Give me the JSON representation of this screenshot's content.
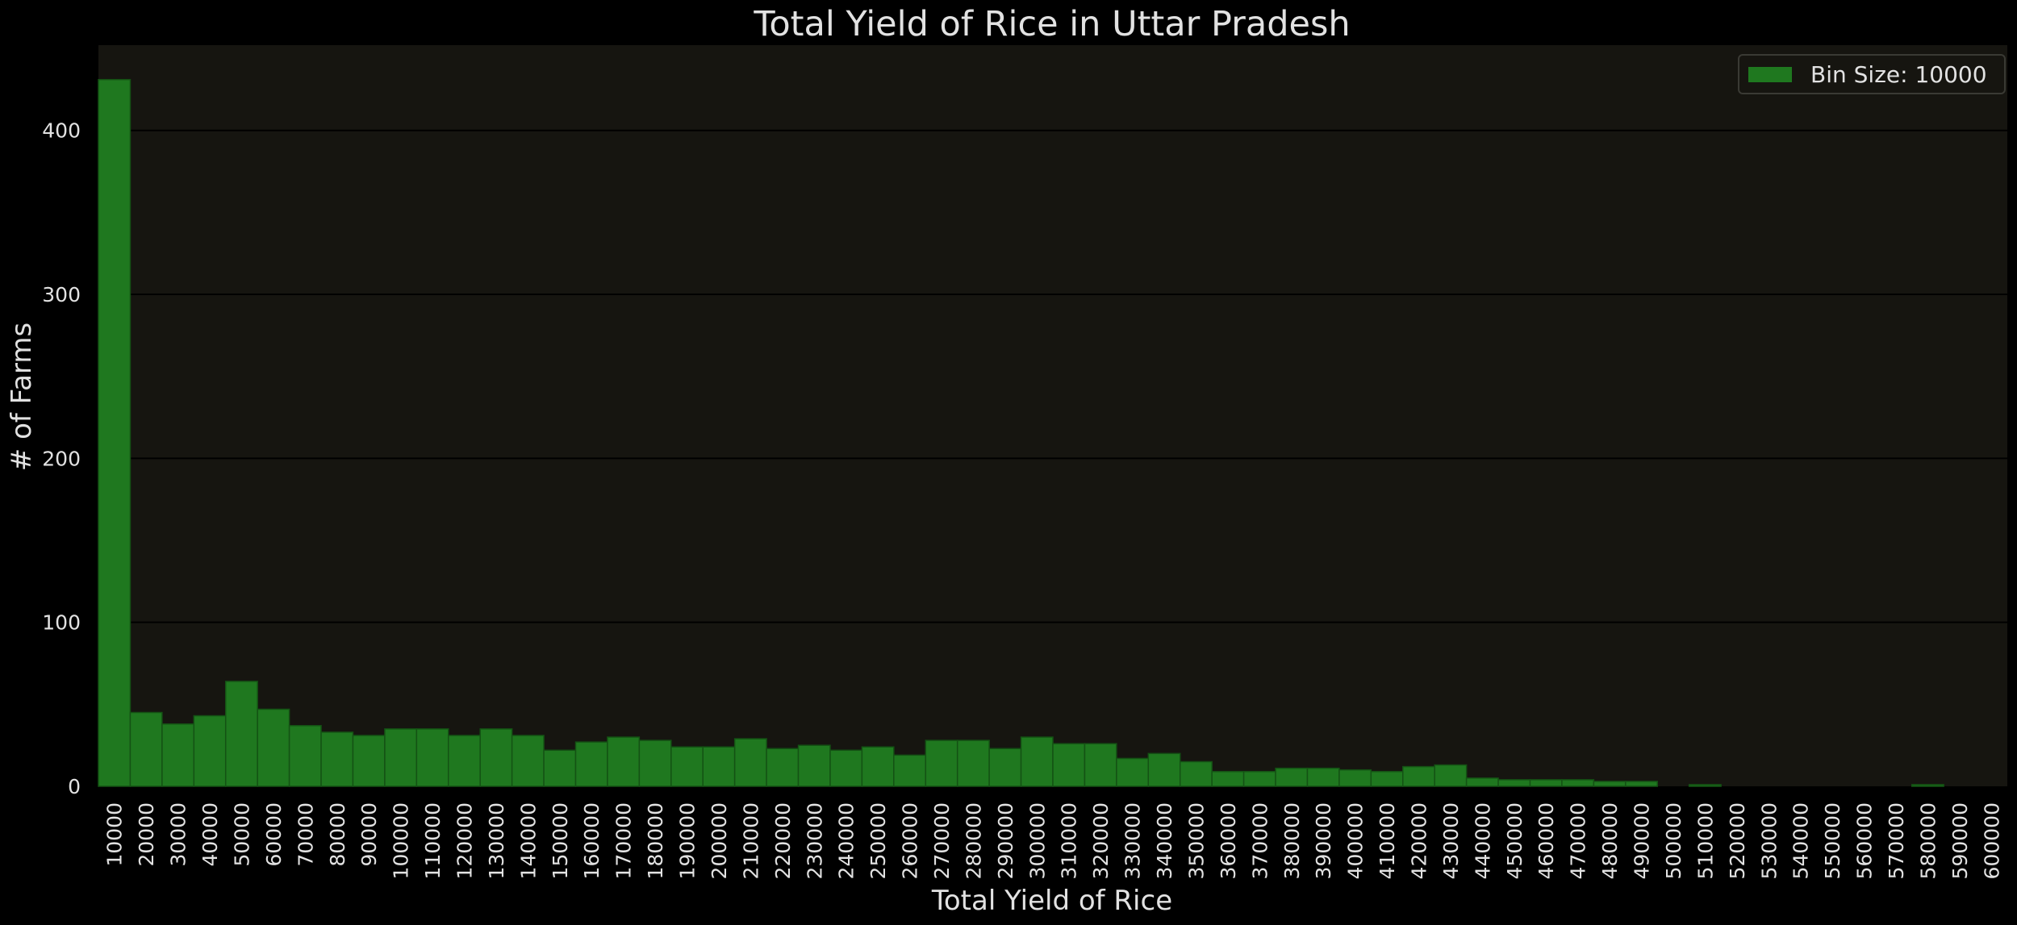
{
  "chart_data": {
    "type": "bar",
    "title": "Total Yield of Rice in Uttar Pradesh",
    "xlabel": "Total Yield of Rice",
    "ylabel": "# of Farms",
    "legend": {
      "label": "Bin Size: 10000",
      "placement": "top-right"
    },
    "categories": [
      "10000",
      "20000",
      "30000",
      "40000",
      "50000",
      "60000",
      "70000",
      "80000",
      "90000",
      "100000",
      "110000",
      "120000",
      "130000",
      "140000",
      "150000",
      "160000",
      "170000",
      "180000",
      "190000",
      "200000",
      "210000",
      "220000",
      "230000",
      "240000",
      "250000",
      "260000",
      "270000",
      "280000",
      "290000",
      "300000",
      "310000",
      "320000",
      "330000",
      "340000",
      "350000",
      "360000",
      "370000",
      "380000",
      "390000",
      "400000",
      "410000",
      "420000",
      "430000",
      "440000",
      "450000",
      "460000",
      "470000",
      "480000",
      "490000",
      "500000",
      "510000",
      "520000",
      "530000",
      "540000",
      "550000",
      "560000",
      "570000",
      "580000",
      "590000",
      "600000"
    ],
    "series": [
      {
        "values": [
          431,
          45,
          38,
          43,
          64,
          47,
          37,
          33,
          31,
          35,
          35,
          31,
          35,
          31,
          22,
          27,
          30,
          28,
          24,
          24,
          29,
          23,
          25,
          22,
          24,
          19,
          28,
          28,
          23,
          30,
          26,
          26,
          17,
          20,
          15,
          9,
          9,
          11,
          11,
          10,
          9,
          12,
          13,
          5,
          4,
          4,
          4,
          3,
          3,
          0,
          1,
          0,
          0,
          0,
          0,
          0,
          0,
          1,
          0,
          0
        ]
      }
    ],
    "yticks": [
      0,
      100,
      200,
      300,
      400
    ],
    "ylim": [
      0,
      452
    ],
    "grid": true,
    "colors": {
      "bar": "#1f781f",
      "bar_edge": "#145214",
      "plot_bg": "#161510",
      "figure_bg": "#000000",
      "grid": "#000000",
      "text": "#e2e2e2"
    }
  }
}
